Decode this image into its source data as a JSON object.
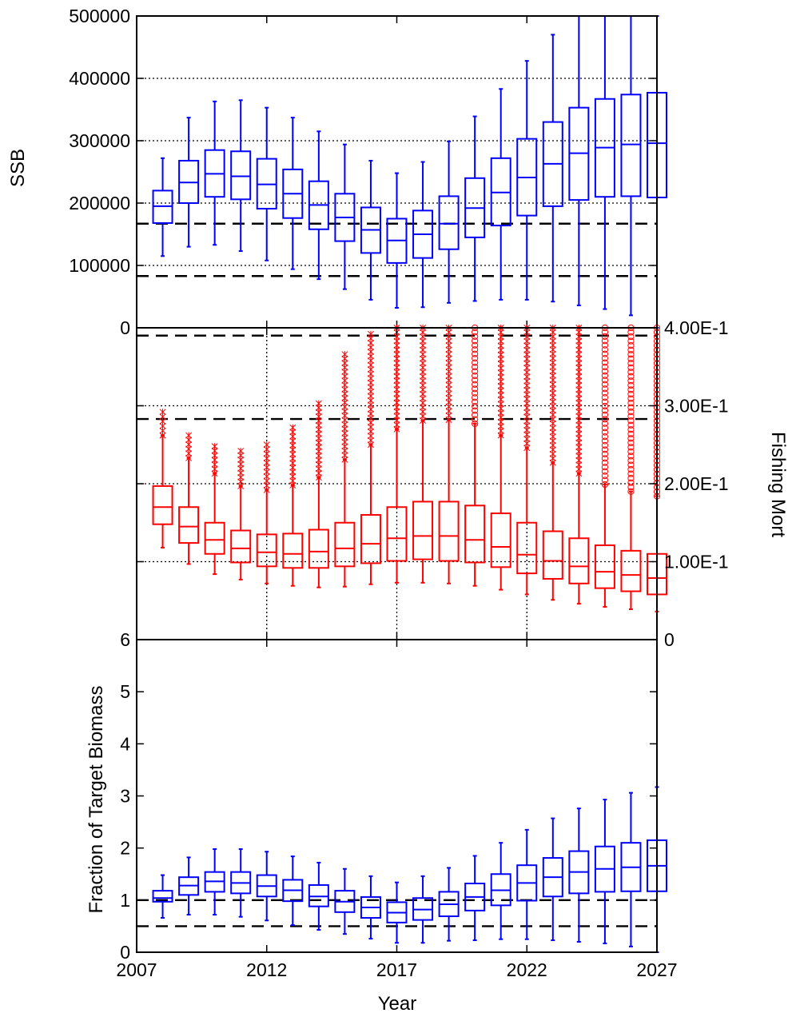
{
  "chart_data": [
    {
      "id": "ssb",
      "type": "box",
      "ylabel": "SSB",
      "ylim": [
        0,
        500000
      ],
      "yticks": [
        "0",
        "100000",
        "200000",
        "300000",
        "400000",
        "500000"
      ],
      "ytick_values": [
        0,
        100000,
        200000,
        300000,
        400000,
        500000
      ],
      "color": "#0000ff",
      "reference_lines": [
        83000,
        167000
      ],
      "grid_y": [
        100000,
        200000,
        300000,
        400000
      ],
      "grid_x": [],
      "years": [
        2008,
        2009,
        2010,
        2011,
        2012,
        2013,
        2014,
        2015,
        2016,
        2017,
        2018,
        2019,
        2020,
        2021,
        2022,
        2023,
        2024,
        2025,
        2026,
        2027
      ],
      "boxes": [
        {
          "min": 115000,
          "q1": 168000,
          "median": 195000,
          "q3": 220000,
          "max": 272000
        },
        {
          "min": 130000,
          "q1": 200000,
          "median": 233000,
          "q3": 268000,
          "max": 337000
        },
        {
          "min": 133000,
          "q1": 210000,
          "median": 247000,
          "q3": 285000,
          "max": 363000
        },
        {
          "min": 123000,
          "q1": 206000,
          "median": 243000,
          "q3": 283000,
          "max": 365000
        },
        {
          "min": 108000,
          "q1": 191000,
          "median": 230000,
          "q3": 271000,
          "max": 353000
        },
        {
          "min": 94000,
          "q1": 176000,
          "median": 215000,
          "q3": 254000,
          "max": 337000
        },
        {
          "min": 78000,
          "q1": 158000,
          "median": 197000,
          "q3": 235000,
          "max": 315000
        },
        {
          "min": 62000,
          "q1": 139000,
          "median": 177000,
          "q3": 215000,
          "max": 294000
        },
        {
          "min": 45000,
          "q1": 120000,
          "median": 157000,
          "q3": 193000,
          "max": 268000
        },
        {
          "min": 32000,
          "q1": 104000,
          "median": 140000,
          "q3": 175000,
          "max": 248000
        },
        {
          "min": 33000,
          "q1": 112000,
          "median": 150000,
          "q3": 188000,
          "max": 266000
        },
        {
          "min": 40000,
          "q1": 126000,
          "median": 167000,
          "q3": 211000,
          "max": 299000
        },
        {
          "min": 43000,
          "q1": 145000,
          "median": 192000,
          "q3": 240000,
          "max": 339000
        },
        {
          "min": 45000,
          "q1": 164000,
          "median": 217000,
          "q3": 272000,
          "max": 383000
        },
        {
          "min": 45000,
          "q1": 180000,
          "median": 241000,
          "q3": 303000,
          "max": 428000
        },
        {
          "min": 42000,
          "q1": 195000,
          "median": 263000,
          "q3": 330000,
          "max": 470000
        },
        {
          "min": 36000,
          "q1": 205000,
          "median": 280000,
          "q3": 353000,
          "max": 500000
        },
        {
          "min": 30000,
          "q1": 210000,
          "median": 289000,
          "q3": 367000,
          "max": 500000
        },
        {
          "min": 20000,
          "q1": 211000,
          "median": 294000,
          "q3": 374000,
          "max": 500000
        },
        {
          "min": 0,
          "q1": 209000,
          "median": 296000,
          "q3": 377000,
          "max": 500000
        }
      ]
    },
    {
      "id": "fishing_mort",
      "type": "box",
      "ylabel": "Fishing Mort",
      "ylim": [
        0,
        0.4
      ],
      "yticks": [
        "0",
        "1.00E-1",
        "2.00E-1",
        "3.00E-1",
        "4.00E-1"
      ],
      "ytick_values": [
        0,
        0.1,
        0.2,
        0.3,
        0.4
      ],
      "color": "#ff0000",
      "reference_lines": [
        0.39,
        0.283
      ],
      "grid_y": [
        0.1,
        0.2,
        0.3
      ],
      "grid_x": [
        2012,
        2017,
        2022
      ],
      "years": [
        2008,
        2009,
        2010,
        2011,
        2012,
        2013,
        2014,
        2015,
        2016,
        2017,
        2018,
        2019,
        2020,
        2021,
        2022,
        2023,
        2024,
        2025,
        2026,
        2027
      ],
      "boxes": [
        {
          "min": 0.118,
          "q1": 0.148,
          "median": 0.17,
          "q3": 0.197,
          "max": 0.262,
          "out_lo": 0.262,
          "out_hi": 0.292,
          "out_mark": "x"
        },
        {
          "min": 0.097,
          "q1": 0.124,
          "median": 0.145,
          "q3": 0.17,
          "max": 0.233,
          "out_lo": 0.233,
          "out_hi": 0.262,
          "out_mark": "x"
        },
        {
          "min": 0.084,
          "q1": 0.11,
          "median": 0.128,
          "q3": 0.15,
          "max": 0.213,
          "out_lo": 0.213,
          "out_hi": 0.248,
          "out_mark": "x"
        },
        {
          "min": 0.077,
          "q1": 0.099,
          "median": 0.117,
          "q3": 0.14,
          "max": 0.197,
          "out_lo": 0.197,
          "out_hi": 0.242,
          "out_mark": "x"
        },
        {
          "min": 0.072,
          "q1": 0.094,
          "median": 0.112,
          "q3": 0.135,
          "max": 0.192,
          "out_lo": 0.192,
          "out_hi": 0.25,
          "out_mark": "x"
        },
        {
          "min": 0.069,
          "q1": 0.092,
          "median": 0.11,
          "q3": 0.136,
          "max": 0.198,
          "out_lo": 0.198,
          "out_hi": 0.272,
          "out_mark": "x"
        },
        {
          "min": 0.067,
          "q1": 0.092,
          "median": 0.113,
          "q3": 0.141,
          "max": 0.208,
          "out_lo": 0.208,
          "out_hi": 0.303,
          "out_mark": "x"
        },
        {
          "min": 0.068,
          "q1": 0.094,
          "median": 0.117,
          "q3": 0.15,
          "max": 0.231,
          "out_lo": 0.231,
          "out_hi": 0.366,
          "out_mark": "x"
        },
        {
          "min": 0.071,
          "q1": 0.098,
          "median": 0.123,
          "q3": 0.16,
          "max": 0.25,
          "out_lo": 0.25,
          "out_hi": 0.392,
          "out_mark": "x"
        },
        {
          "min": 0.073,
          "q1": 0.101,
          "median": 0.13,
          "q3": 0.17,
          "max": 0.27,
          "out_lo": 0.27,
          "out_hi": 0.4,
          "out_mark": "x"
        },
        {
          "min": 0.073,
          "q1": 0.103,
          "median": 0.133,
          "q3": 0.177,
          "max": 0.281,
          "out_lo": 0.281,
          "out_hi": 0.4,
          "out_mark": "x"
        },
        {
          "min": 0.072,
          "q1": 0.101,
          "median": 0.133,
          "q3": 0.177,
          "max": 0.282,
          "out_lo": 0.282,
          "out_hi": 0.4,
          "out_mark": "x"
        },
        {
          "min": 0.069,
          "q1": 0.099,
          "median": 0.128,
          "q3": 0.172,
          "max": 0.277,
          "out_lo": 0.277,
          "out_hi": 0.4,
          "out_mark": "o"
        },
        {
          "min": 0.064,
          "q1": 0.093,
          "median": 0.119,
          "q3": 0.162,
          "max": 0.262,
          "out_lo": 0.262,
          "out_hi": 0.4,
          "out_mark": "x"
        },
        {
          "min": 0.058,
          "q1": 0.085,
          "median": 0.109,
          "q3": 0.15,
          "max": 0.246,
          "out_lo": 0.246,
          "out_hi": 0.4,
          "out_mark": "x"
        },
        {
          "min": 0.051,
          "q1": 0.078,
          "median": 0.101,
          "q3": 0.139,
          "max": 0.227,
          "out_lo": 0.227,
          "out_hi": 0.4,
          "out_mark": "x"
        },
        {
          "min": 0.046,
          "q1": 0.072,
          "median": 0.094,
          "q3": 0.13,
          "max": 0.213,
          "out_lo": 0.213,
          "out_hi": 0.4,
          "out_mark": "x"
        },
        {
          "min": 0.042,
          "q1": 0.066,
          "median": 0.087,
          "q3": 0.121,
          "max": 0.199,
          "out_lo": 0.199,
          "out_hi": 0.4,
          "out_mark": "o"
        },
        {
          "min": 0.039,
          "q1": 0.062,
          "median": 0.083,
          "q3": 0.114,
          "max": 0.19,
          "out_lo": 0.19,
          "out_hi": 0.4,
          "out_mark": "o"
        },
        {
          "min": 0.036,
          "q1": 0.058,
          "median": 0.079,
          "q3": 0.11,
          "max": 0.184,
          "out_lo": 0.184,
          "out_hi": 0.4,
          "out_mark": "o"
        }
      ]
    },
    {
      "id": "fraction_target",
      "type": "box",
      "xlabel": "Year",
      "ylabel": "Fraction of Target Biomass",
      "ylim": [
        0,
        6
      ],
      "yticks": [
        "0",
        "1",
        "2",
        "3",
        "4",
        "5",
        "6"
      ],
      "ytick_values": [
        0,
        1,
        2,
        3,
        4,
        5,
        6
      ],
      "xticks": [
        "2007",
        "2012",
        "2017",
        "2022",
        "2027"
      ],
      "xtick_values": [
        2007,
        2012,
        2017,
        2022,
        2027
      ],
      "xlim": [
        2007,
        2027
      ],
      "color": "#0000ff",
      "reference_lines": [
        0.5,
        1.0
      ],
      "grid_y": [],
      "grid_x": [],
      "years": [
        2008,
        2009,
        2010,
        2011,
        2012,
        2013,
        2014,
        2015,
        2016,
        2017,
        2018,
        2019,
        2020,
        2021,
        2022,
        2023,
        2024,
        2025,
        2026,
        2027
      ],
      "boxes": [
        {
          "min": 0.66,
          "q1": 0.97,
          "median": 1.04,
          "q3": 1.18,
          "max": 1.48
        },
        {
          "min": 0.72,
          "q1": 1.1,
          "median": 1.28,
          "q3": 1.44,
          "max": 1.82
        },
        {
          "min": 0.72,
          "q1": 1.16,
          "median": 1.36,
          "q3": 1.54,
          "max": 1.98
        },
        {
          "min": 0.68,
          "q1": 1.13,
          "median": 1.33,
          "q3": 1.54,
          "max": 1.98
        },
        {
          "min": 0.61,
          "q1": 1.07,
          "median": 1.27,
          "q3": 1.48,
          "max": 1.93
        },
        {
          "min": 0.52,
          "q1": 0.98,
          "median": 1.19,
          "q3": 1.39,
          "max": 1.84
        },
        {
          "min": 0.43,
          "q1": 0.88,
          "median": 1.07,
          "q3": 1.29,
          "max": 1.72
        },
        {
          "min": 0.35,
          "q1": 0.77,
          "median": 0.97,
          "q3": 1.18,
          "max": 1.6
        },
        {
          "min": 0.26,
          "q1": 0.66,
          "median": 0.86,
          "q3": 1.06,
          "max": 1.46
        },
        {
          "min": 0.18,
          "q1": 0.57,
          "median": 0.76,
          "q3": 0.96,
          "max": 1.34
        },
        {
          "min": 0.18,
          "q1": 0.62,
          "median": 0.82,
          "q3": 1.04,
          "max": 1.46
        },
        {
          "min": 0.22,
          "q1": 0.69,
          "median": 0.92,
          "q3": 1.16,
          "max": 1.62
        },
        {
          "min": 0.23,
          "q1": 0.8,
          "median": 1.06,
          "q3": 1.32,
          "max": 1.85
        },
        {
          "min": 0.25,
          "q1": 0.9,
          "median": 1.19,
          "q3": 1.5,
          "max": 2.1
        },
        {
          "min": 0.25,
          "q1": 0.99,
          "median": 1.33,
          "q3": 1.67,
          "max": 2.35
        },
        {
          "min": 0.23,
          "q1": 1.07,
          "median": 1.44,
          "q3": 1.81,
          "max": 2.57
        },
        {
          "min": 0.2,
          "q1": 1.13,
          "median": 1.54,
          "q3": 1.94,
          "max": 2.76
        },
        {
          "min": 0.17,
          "q1": 1.16,
          "median": 1.6,
          "q3": 2.03,
          "max": 2.93
        },
        {
          "min": 0.11,
          "q1": 1.17,
          "median": 1.63,
          "q3": 2.1,
          "max": 3.06
        },
        {
          "min": 0.0,
          "q1": 1.17,
          "median": 1.66,
          "q3": 2.15,
          "max": 3.17
        }
      ]
    }
  ]
}
